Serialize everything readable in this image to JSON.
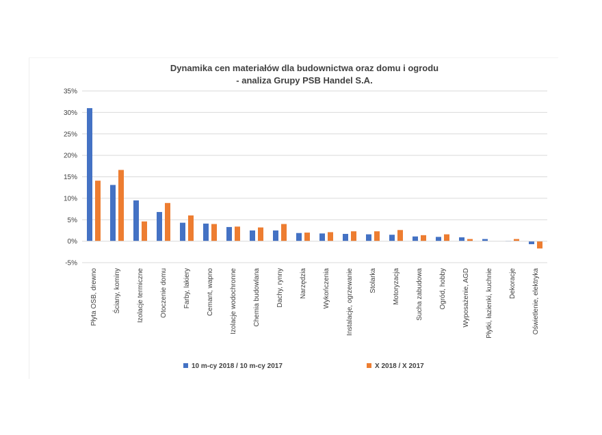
{
  "chart_data": {
    "type": "bar",
    "title": "Dynamika cen materiałów dla budownictwa oraz domu i ogrodu",
    "subtitle": "- analiza Grupy PSB Handel S.A.",
    "ylim": [
      -0.05,
      0.35
    ],
    "yticks": [
      {
        "value": 0.35,
        "label": "35%"
      },
      {
        "value": 0.3,
        "label": "30%"
      },
      {
        "value": 0.25,
        "label": "25%"
      },
      {
        "value": 0.2,
        "label": "20%"
      },
      {
        "value": 0.15,
        "label": "15%"
      },
      {
        "value": 0.1,
        "label": "10%"
      },
      {
        "value": 0.05,
        "label": "5%"
      },
      {
        "value": 0.0,
        "label": "0%"
      },
      {
        "value": -0.05,
        "label": "-5%"
      }
    ],
    "grid": true,
    "legend_position": "bottom",
    "categories": [
      "Płyta OSB, drewno",
      "Ściany, kominy",
      "Izolacje termiczne",
      "Otoczenie domu",
      "Farby, lakiery",
      "Cemant, wapno",
      "Izolacje wodochronne",
      "Chemia budowlana",
      "Dachy, rynny",
      "Narzędzia",
      "Wykończenia",
      "Instalacje, ogrzewanie",
      "Stolarka",
      "Motoryzacja",
      "Sucha zabudowa",
      "Ogród, hobby",
      "Wyposażenie, AGD",
      "Płytki, łazienki, kuchnie",
      "Dekoracje",
      "Oświetlenie, elektryka"
    ],
    "series": [
      {
        "name": "10 m-cy 2018 / 10 m-cy 2017",
        "color": "#4472c4",
        "values": [
          0.31,
          0.131,
          0.095,
          0.068,
          0.043,
          0.041,
          0.033,
          0.025,
          0.025,
          0.019,
          0.018,
          0.017,
          0.016,
          0.015,
          0.011,
          0.01,
          0.009,
          0.005,
          0.001,
          -0.007
        ]
      },
      {
        "name": "X 2018 / X 2017",
        "color": "#ed7d31",
        "values": [
          0.141,
          0.166,
          0.046,
          0.089,
          0.06,
          0.04,
          0.034,
          0.032,
          0.04,
          0.02,
          0.021,
          0.023,
          0.023,
          0.026,
          0.014,
          0.016,
          0.005,
          0.0,
          0.005,
          -0.017
        ]
      }
    ]
  }
}
